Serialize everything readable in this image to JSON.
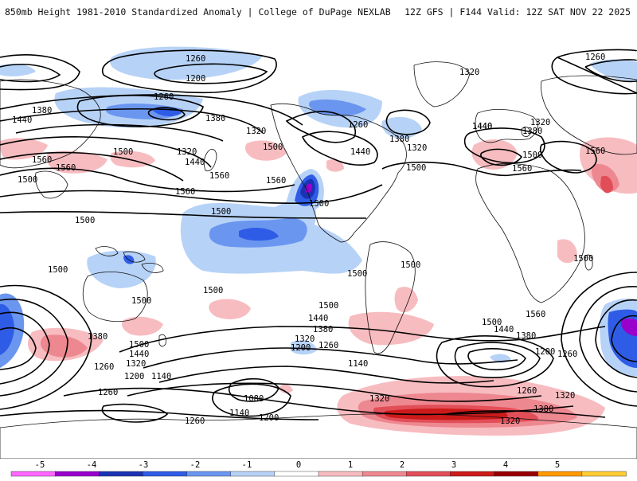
{
  "header": {
    "title": "850mb Height 1981-2010 Standardized Anomaly | College of DuPage NEXLAB",
    "run_info": "12Z GFS | F144 Valid: 12Z SAT NOV 22 2025"
  },
  "contour_labels": [
    "1260",
    "1200",
    "1320",
    "1380",
    "1440",
    "1500",
    "1560",
    "1140",
    "1080"
  ],
  "legend": {
    "ticks": [
      "-5",
      "-4",
      "-3",
      "-2",
      "-1",
      "0",
      "1",
      "2",
      "3",
      "4",
      "5"
    ],
    "colors": [
      "#ff66ff",
      "#9900cc",
      "#1a33b3",
      "#2e5ce6",
      "#6b96f0",
      "#b7d2f7",
      "#ffffff",
      "#f7bcc0",
      "#ee8890",
      "#e24e58",
      "#cc1a1a",
      "#990000",
      "#ff9900",
      "#ffcc33"
    ]
  }
}
